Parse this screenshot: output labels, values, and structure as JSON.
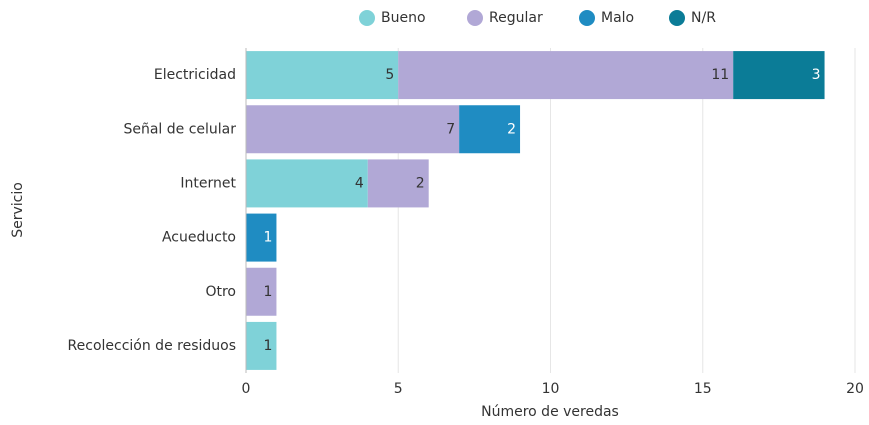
{
  "chart_data": {
    "type": "bar",
    "orientation": "horizontal",
    "stacked": true,
    "xlabel": "Número de veredas",
    "ylabel": "Servicio",
    "categories": [
      "Electricidad",
      "Señal de celular",
      "Internet",
      "Acueducto",
      "Otro",
      "Recolección de residuos"
    ],
    "series": [
      {
        "name": "Bueno",
        "color": "#7fd2d8",
        "values": [
          5,
          null,
          4,
          null,
          null,
          1
        ]
      },
      {
        "name": "Regular",
        "color": "#b1a8d6",
        "values": [
          11,
          7,
          2,
          null,
          1,
          null
        ]
      },
      {
        "name": "Malo",
        "color": "#1f8cc2",
        "values": [
          null,
          2,
          null,
          1,
          null,
          null
        ]
      },
      {
        "name": "N/R",
        "color": "#0b7c97",
        "values": [
          3,
          null,
          null,
          null,
          null,
          null
        ]
      }
    ],
    "xlim": [
      0,
      20
    ],
    "xticks": [
      0,
      5,
      10,
      15,
      20
    ],
    "grid": true,
    "legend": "top"
  }
}
